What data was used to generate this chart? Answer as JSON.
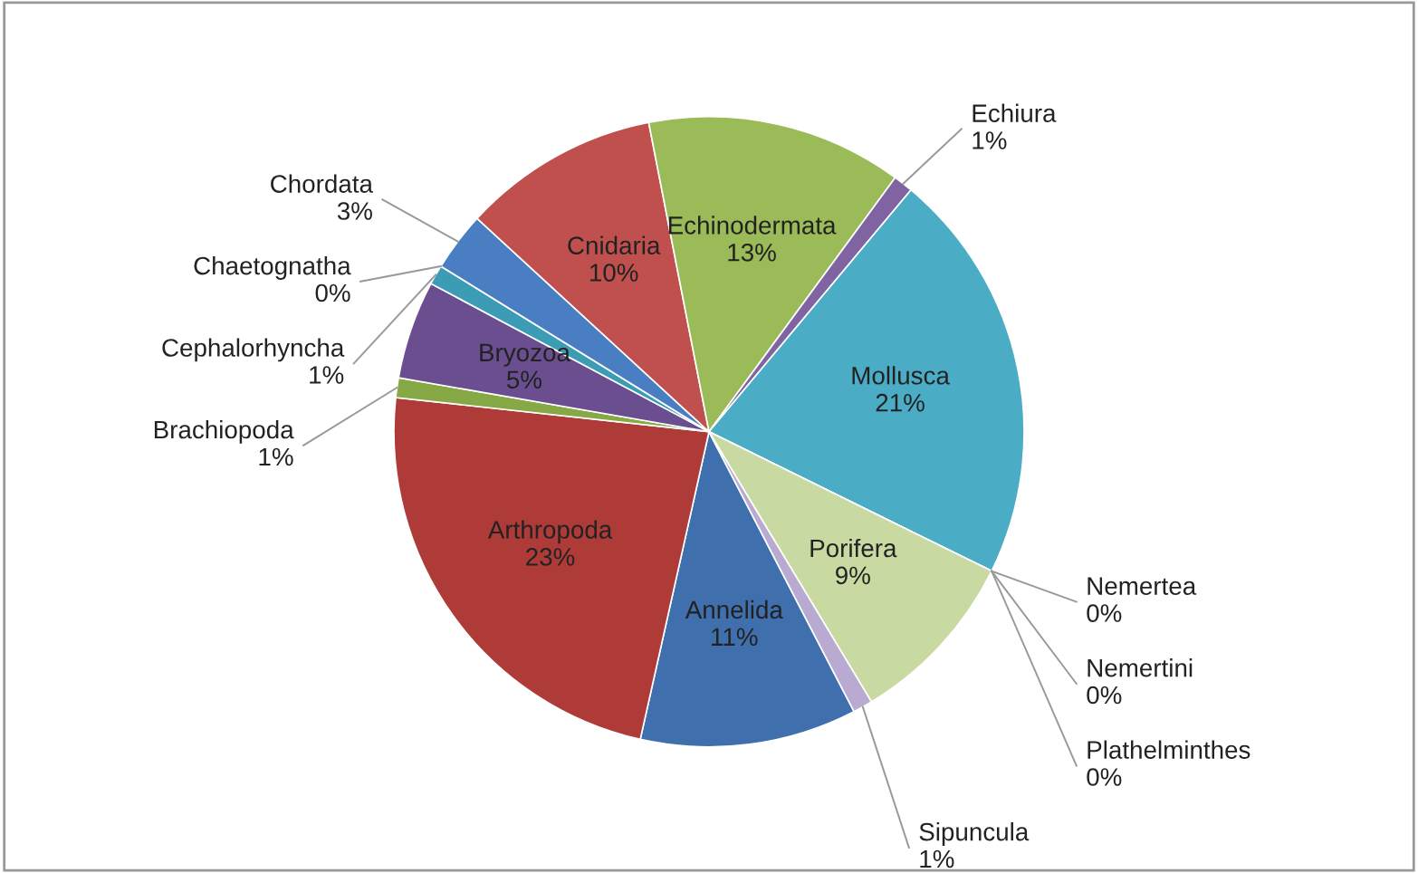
{
  "chart_data": {
    "type": "pie",
    "categories": [
      "Annelida",
      "Arthropoda",
      "Brachiopoda",
      "Bryozoa",
      "Cephalorhyncha",
      "Chaetognatha",
      "Chordata",
      "Cnidaria",
      "Echinodermata",
      "Echiura",
      "Mollusca",
      "Nemertea",
      "Nemertini",
      "Plathelminthes",
      "Porifera",
      "Sipuncula"
    ],
    "values": [
      11,
      23,
      1,
      5,
      1,
      0,
      3,
      10,
      13,
      1,
      21,
      0,
      0,
      0,
      9,
      1
    ],
    "colors": [
      "#3f6fad",
      "#ae3b38",
      "#86a845",
      "#6a4e8f",
      "#3d9cb5",
      "#e07b2c",
      "#4a7ec2",
      "#c0504d",
      "#9bbb59",
      "#8064a2",
      "#4bacc6",
      "#f79646",
      "#7f9fd0",
      "#d9928f",
      "#c9d9a2",
      "#b9aad1"
    ],
    "value_labels": [
      "11%",
      "23%",
      "1%",
      "5%",
      "1%",
      "0%",
      "3%",
      "10%",
      "13%",
      "1%",
      "21%",
      "0%",
      "0%",
      "0%",
      "9%",
      "1%"
    ]
  }
}
